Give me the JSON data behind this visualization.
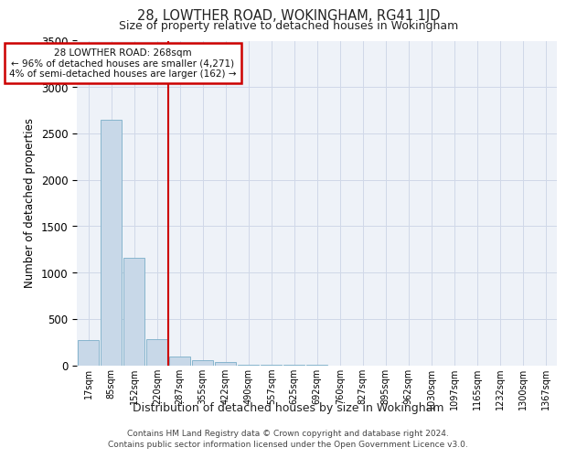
{
  "title": "28, LOWTHER ROAD, WOKINGHAM, RG41 1JD",
  "subtitle": "Size of property relative to detached houses in Wokingham",
  "xlabel": "Distribution of detached houses by size in Wokingham",
  "ylabel": "Number of detached properties",
  "bar_labels": [
    "17sqm",
    "85sqm",
    "152sqm",
    "220sqm",
    "287sqm",
    "355sqm",
    "422sqm",
    "490sqm",
    "557sqm",
    "625sqm",
    "692sqm",
    "760sqm",
    "827sqm",
    "895sqm",
    "962sqm",
    "1030sqm",
    "1097sqm",
    "1165sqm",
    "1232sqm",
    "1300sqm",
    "1367sqm"
  ],
  "bar_values": [
    270,
    2650,
    1160,
    285,
    95,
    55,
    35,
    5,
    2,
    1,
    1,
    0,
    0,
    0,
    0,
    0,
    0,
    0,
    0,
    0,
    0
  ],
  "bar_color": "#c8d8e8",
  "bar_edge_color": "#7aaec8",
  "grid_color": "#d0d8e8",
  "background_color": "#eef2f8",
  "vline_x": 3.5,
  "vline_color": "#cc0000",
  "annotation_title": "28 LOWTHER ROAD: 268sqm",
  "annotation_line1": "← 96% of detached houses are smaller (4,271)",
  "annotation_line2": "4% of semi-detached houses are larger (162) →",
  "annotation_box_color": "#ffffff",
  "annotation_box_edge": "#cc0000",
  "ylim": [
    0,
    3500
  ],
  "yticks": [
    0,
    500,
    1000,
    1500,
    2000,
    2500,
    3000,
    3500
  ],
  "footer_line1": "Contains HM Land Registry data © Crown copyright and database right 2024.",
  "footer_line2": "Contains public sector information licensed under the Open Government Licence v3.0."
}
